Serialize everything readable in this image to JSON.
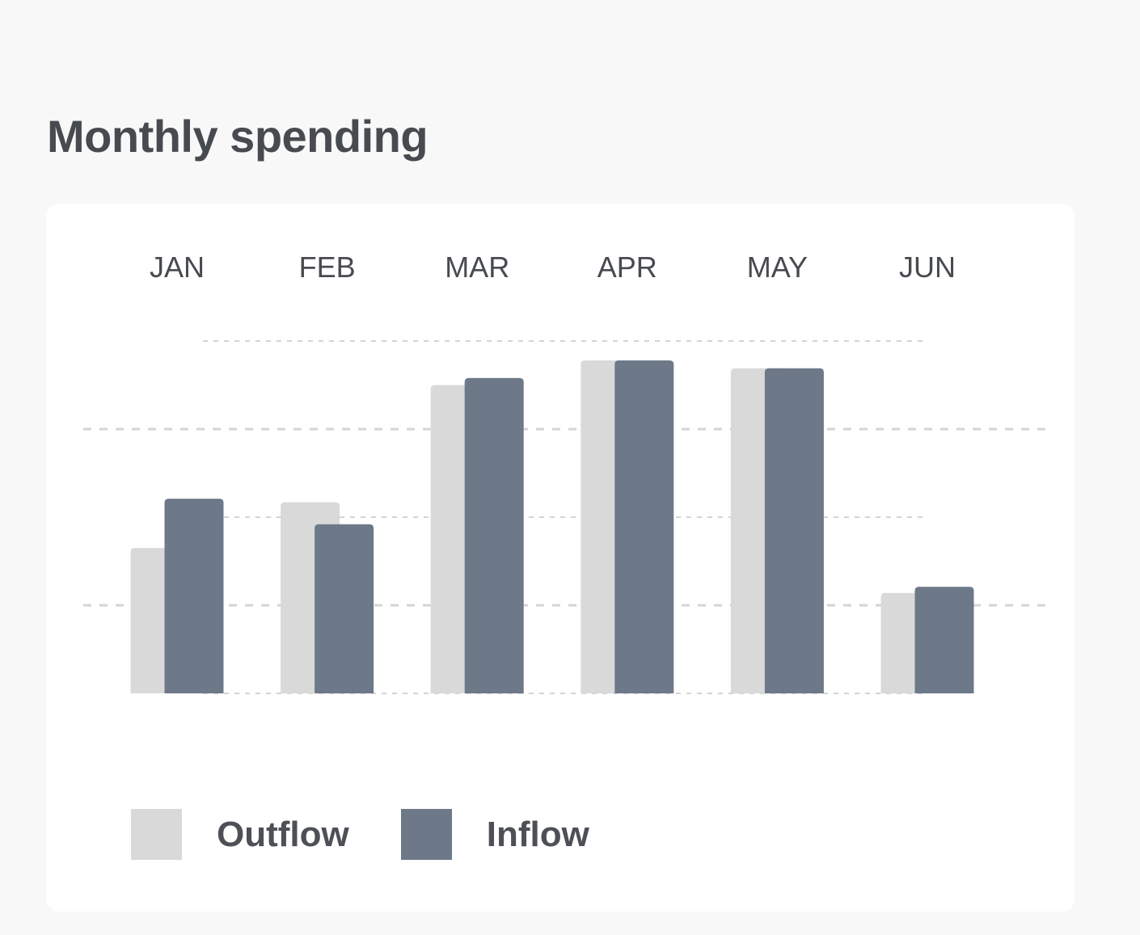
{
  "title": "Monthly spending",
  "colors": {
    "background": "#f8f8f8",
    "card": "#ffffff",
    "outflow": "#d9d9d9",
    "inflow": "#6d7988",
    "gridline": "#d4d4d4",
    "text": "#474a4f"
  },
  "chart_data": {
    "type": "bar",
    "title": "Monthly spending",
    "categories": [
      "JAN",
      "FEB",
      "MAR",
      "APR",
      "MAY",
      "JUN"
    ],
    "series": [
      {
        "name": "Outflow",
        "color": "#d9d9d9",
        "values": [
          1.65,
          2.17,
          3.5,
          3.78,
          3.69,
          1.14
        ]
      },
      {
        "name": "Inflow",
        "color": "#6d7988",
        "values": [
          2.21,
          1.92,
          3.58,
          3.78,
          3.69,
          1.21
        ]
      }
    ],
    "ylim": [
      0,
      4
    ],
    "grid": true,
    "legend": "bottom-left",
    "category_labels_position": "top",
    "xlabel": "",
    "ylabel": ""
  },
  "legend": {
    "items": [
      {
        "label": "Outflow",
        "color": "#d9d9d9"
      },
      {
        "label": "Inflow",
        "color": "#6d7988"
      }
    ]
  }
}
